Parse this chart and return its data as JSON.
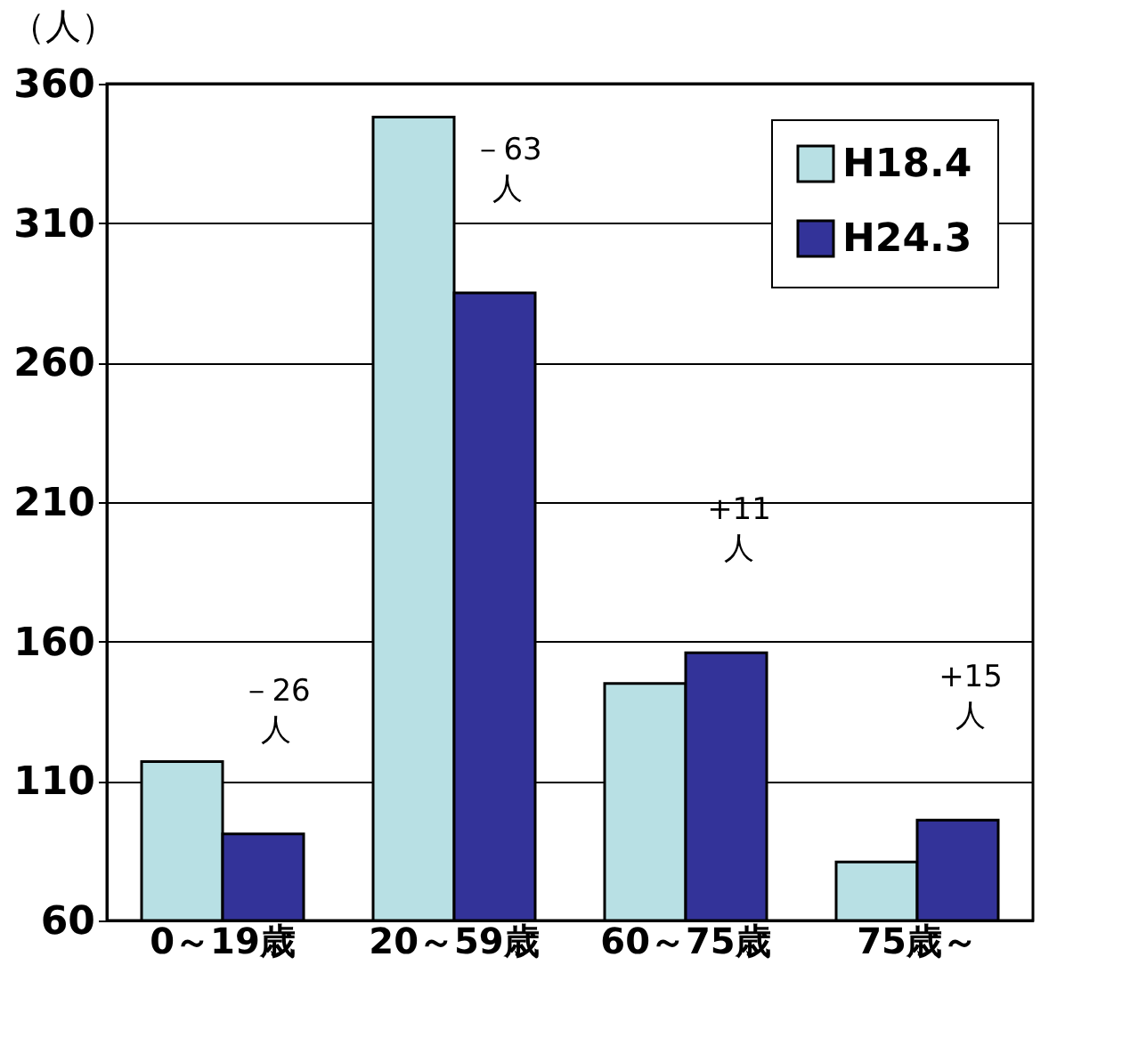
{
  "chart_data": {
    "type": "bar",
    "ylabel": "（人）",
    "categories": [
      "0～19歳",
      "20～59歳",
      "60～75歳",
      "75歳～"
    ],
    "series": [
      {
        "name": "H18.4",
        "color": "#b8e0e4",
        "values": [
          117,
          348,
          145,
          81
        ]
      },
      {
        "name": "H24.3",
        "color": "#333399",
        "values": [
          91,
          285,
          156,
          96
        ]
      }
    ],
    "ylim": [
      60,
      360
    ],
    "yticks": [
      60,
      110,
      160,
      210,
      260,
      310,
      360
    ],
    "grid": "y",
    "legend": "top right",
    "annotations": [
      {
        "text": "－26\n人",
        "x": "0～19歳",
        "y": 91
      },
      {
        "text": "－63\n人",
        "x": "20～59歳",
        "y": 285
      },
      {
        "text": "+11\n人",
        "x": "60～75歳",
        "y": 156
      },
      {
        "text": "+15\n人",
        "x": "75歳～",
        "y": 96
      }
    ]
  }
}
